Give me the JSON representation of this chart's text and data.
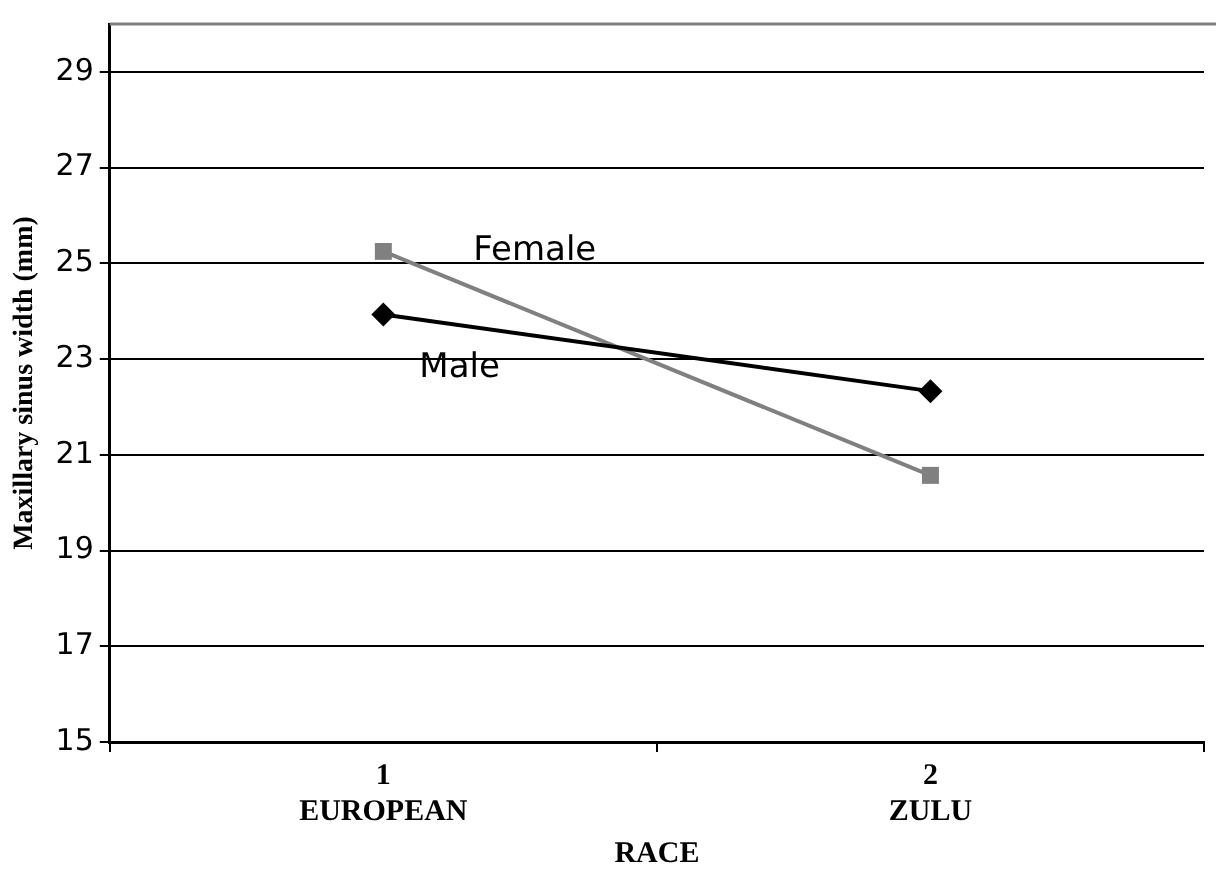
{
  "chart_data": {
    "type": "line",
    "xlabel": "RACE",
    "ylabel": "Maxillary sinus width (mm)",
    "categories": [
      "1\nEUROPEAN",
      "2\nZULU"
    ],
    "series": [
      {
        "name": "Male",
        "color": "#000000",
        "marker": "diamond",
        "values": [
          23.93,
          22.33
        ]
      },
      {
        "name": "Female",
        "color": "#808080",
        "marker": "square",
        "values": [
          25.25,
          20.57
        ]
      }
    ],
    "ylim": [
      15,
      30
    ],
    "yticks": [
      15,
      17,
      19,
      21,
      23,
      25,
      27,
      29
    ],
    "grid": "y",
    "legend": false,
    "line_style": "solid"
  }
}
